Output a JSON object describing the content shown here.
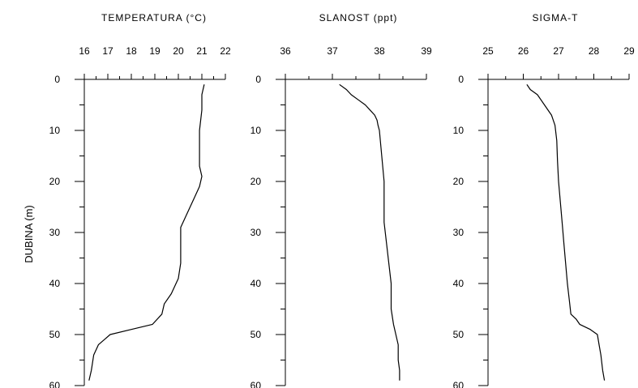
{
  "chart_data": [
    {
      "type": "line",
      "title": "TEMPERATURA (°C)",
      "ylabel": "DUBINA (m)",
      "xlim": [
        16,
        22
      ],
      "ylim": [
        0,
        60
      ],
      "x_ticks": [
        16,
        17,
        18,
        19,
        20,
        21,
        22
      ],
      "y_ticks": [
        0,
        10,
        20,
        30,
        40,
        50,
        60
      ],
      "y_reversed": true,
      "x_axis_position": "top",
      "series": [
        {
          "x": [
            21.1,
            21.0,
            21.0,
            20.9,
            20.9,
            20.9,
            20.9,
            21.0,
            20.9,
            20.6,
            20.3,
            20.1,
            20.1,
            20.1,
            20.1,
            20.0,
            19.7,
            19.4,
            19.3,
            18.9,
            18.0,
            17.1,
            16.6,
            16.4,
            16.3,
            16.2
          ],
          "y": [
            1,
            3,
            6,
            10,
            12,
            15,
            17,
            19,
            21,
            24,
            27,
            29,
            30,
            33,
            36,
            39,
            42,
            44,
            46,
            48,
            49,
            50,
            52,
            54,
            57,
            59
          ]
        }
      ]
    },
    {
      "type": "line",
      "title": "SLANOST (ppt)",
      "xlim": [
        36,
        39
      ],
      "ylim": [
        0,
        60
      ],
      "x_ticks": [
        36,
        37,
        38,
        39
      ],
      "y_ticks": [
        0,
        10,
        20,
        30,
        40,
        50,
        60
      ],
      "y_reversed": true,
      "x_axis_position": "top",
      "series": [
        {
          "x": [
            37.15,
            37.3,
            37.4,
            37.55,
            37.7,
            37.8,
            37.9,
            37.95,
            37.97,
            38.0,
            38.05,
            38.1,
            38.1,
            38.1,
            38.15,
            38.2,
            38.25,
            38.25,
            38.3,
            38.35,
            38.4,
            38.4,
            38.43,
            38.43
          ],
          "y": [
            1,
            2,
            3,
            4,
            5,
            6,
            7,
            8,
            9,
            10,
            15,
            20,
            25,
            28,
            32,
            36,
            40,
            45,
            48,
            50,
            52,
            55,
            57,
            59
          ]
        }
      ]
    },
    {
      "type": "line",
      "title": "SIGMA-T",
      "xlim": [
        25,
        29
      ],
      "ylim": [
        0,
        60
      ],
      "x_ticks": [
        25,
        26,
        27,
        28,
        29
      ],
      "y_ticks": [
        0,
        10,
        20,
        30,
        40,
        50,
        60
      ],
      "y_reversed": true,
      "x_axis_position": "top",
      "series": [
        {
          "x": [
            26.1,
            26.2,
            26.4,
            26.6,
            26.8,
            26.9,
            26.95,
            26.97,
            27.0,
            27.05,
            27.1,
            27.15,
            27.2,
            27.25,
            27.3,
            27.35,
            27.5,
            27.6,
            27.9,
            28.1,
            28.15,
            28.2,
            28.25,
            28.3
          ],
          "y": [
            1,
            2,
            3,
            5,
            7,
            9,
            12,
            16,
            20,
            24,
            28,
            32,
            36,
            40,
            43,
            46,
            47,
            48,
            49,
            50,
            52,
            54,
            57,
            59
          ]
        }
      ]
    }
  ]
}
